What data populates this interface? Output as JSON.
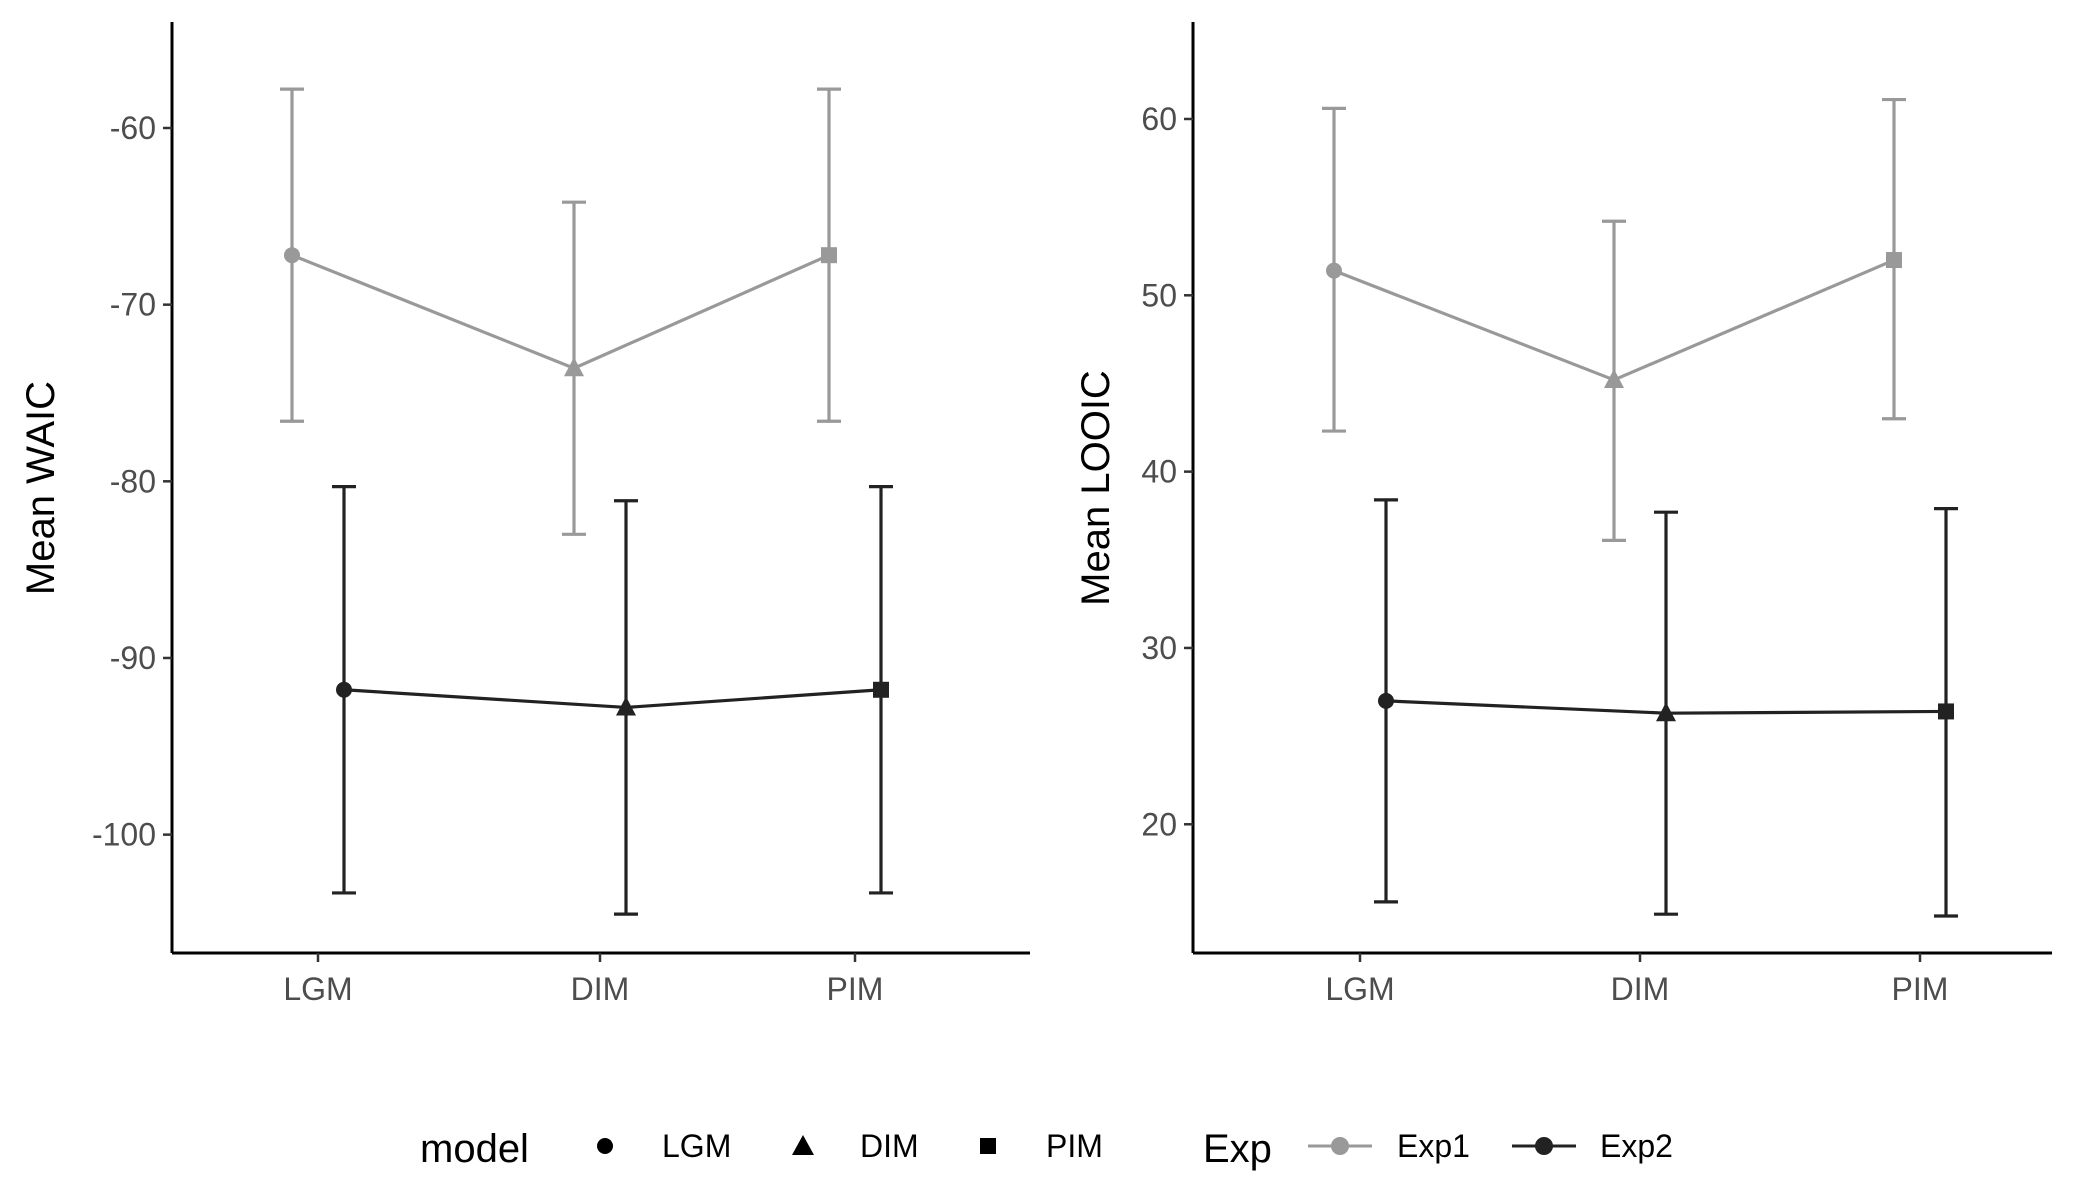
{
  "chart_data": [
    {
      "type": "line",
      "title": "",
      "xlabel": "",
      "ylabel": "Mean WAIC",
      "categories": [
        "LGM",
        "DIM",
        "PIM"
      ],
      "y_ticks": [
        "-60",
        "-70",
        "-80",
        "-90",
        "-100"
      ],
      "ylim": [
        -106.7,
        -54.0
      ],
      "grid": false,
      "series": [
        {
          "name": "Exp1",
          "color": "#999999",
          "values": [
            -67.2,
            -73.6,
            -67.2
          ],
          "error_low": [
            -76.6,
            -83.0,
            -76.6
          ],
          "error_high": [
            -57.8,
            -64.2,
            -57.8
          ]
        },
        {
          "name": "Exp2",
          "color": "#222222",
          "values": [
            -91.8,
            -92.8,
            -91.8
          ],
          "error_low": [
            -103.3,
            -104.5,
            -103.3
          ],
          "error_high": [
            -80.3,
            -81.1,
            -80.3
          ]
        }
      ]
    },
    {
      "type": "line",
      "title": "",
      "xlabel": "",
      "ylabel": "Mean LOOIC",
      "categories": [
        "LGM",
        "DIM",
        "PIM"
      ],
      "y_ticks": [
        "60",
        "50",
        "40",
        "30",
        "20"
      ],
      "ylim": [
        12.7,
        65.5
      ],
      "grid": false,
      "series": [
        {
          "name": "Exp1",
          "color": "#999999",
          "values": [
            51.4,
            45.2,
            52.0
          ],
          "error_low": [
            42.3,
            36.1,
            43.0
          ],
          "error_high": [
            60.6,
            54.2,
            61.1
          ]
        },
        {
          "name": "Exp2",
          "color": "#222222",
          "values": [
            27.0,
            26.3,
            26.4
          ],
          "error_low": [
            15.6,
            14.9,
            14.8
          ],
          "error_high": [
            38.4,
            37.7,
            37.9
          ]
        }
      ]
    }
  ],
  "legend": {
    "placement": "bottom",
    "model_title": "model",
    "model_items": [
      {
        "label": "LGM",
        "shape": "circle"
      },
      {
        "label": "DIM",
        "shape": "triangle"
      },
      {
        "label": "PIM",
        "shape": "square"
      }
    ],
    "exp_title": "Exp",
    "exp_items": [
      {
        "label": "Exp1",
        "color": "#999999"
      },
      {
        "label": "Exp2",
        "color": "#222222"
      }
    ]
  }
}
